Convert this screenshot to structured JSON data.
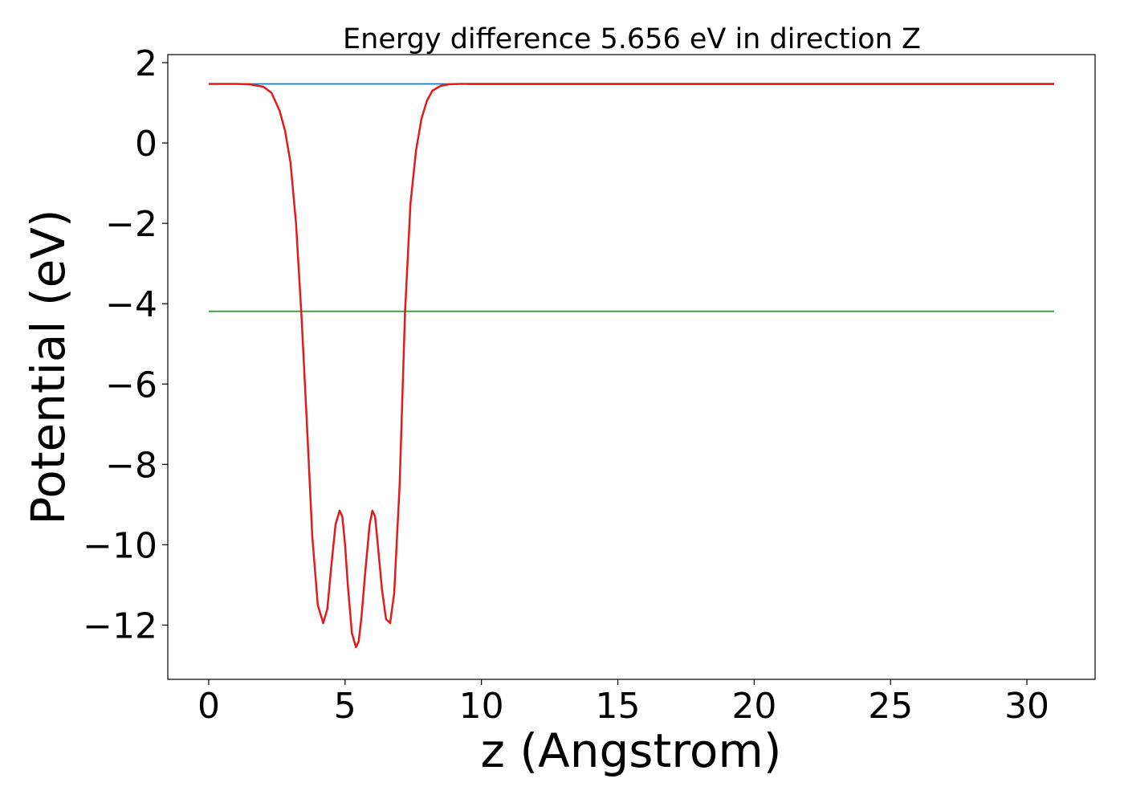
{
  "chart_data": {
    "type": "line",
    "title": "Energy difference 5.656 eV in direction Z",
    "xlabel": "z (Angstrom)",
    "ylabel": "Potential (eV)",
    "xlim": [
      -1.5,
      32.5
    ],
    "ylim": [
      -13.35,
      2.2
    ],
    "xticks": [
      0,
      5,
      10,
      15,
      20,
      25,
      30
    ],
    "xtick_labels": [
      "0",
      "5",
      "10",
      "15",
      "20",
      "25",
      "30"
    ],
    "yticks": [
      2,
      0,
      -2,
      -4,
      -6,
      -8,
      -10,
      -12
    ],
    "ytick_labels": [
      "2",
      "0",
      "−2",
      "−4",
      "−6",
      "−8",
      "−10",
      "−12"
    ],
    "grid": false,
    "legend": "none",
    "series": [
      {
        "color": "#1f77b4",
        "x": [
          0,
          31
        ],
        "y": [
          1.47,
          1.47
        ]
      },
      {
        "color": "#2ca02c",
        "x": [
          0,
          31
        ],
        "y": [
          -4.19,
          -4.19
        ]
      },
      {
        "color": "#7b68a8",
        "x": [
          9.5,
          31
        ],
        "y": [
          1.46,
          1.46
        ]
      },
      {
        "color": "#e31a1c",
        "x": [
          0,
          1.0,
          1.5,
          2.0,
          2.3,
          2.6,
          2.8,
          3.0,
          3.2,
          3.4,
          3.6,
          3.8,
          4.0,
          4.2,
          4.35,
          4.5,
          4.65,
          4.8,
          4.9,
          5.0,
          5.1,
          5.25,
          5.4,
          5.5,
          5.6,
          5.75,
          5.9,
          6.0,
          6.1,
          6.2,
          6.35,
          6.5,
          6.65,
          6.8,
          7.0,
          7.2,
          7.4,
          7.6,
          7.8,
          8.0,
          8.2,
          8.5,
          8.8,
          9.2,
          10.0,
          12.0,
          31.0
        ],
        "y": [
          1.47,
          1.47,
          1.46,
          1.4,
          1.25,
          0.8,
          0.3,
          -0.5,
          -2.0,
          -4.3,
          -7.0,
          -9.8,
          -11.5,
          -11.95,
          -11.6,
          -10.5,
          -9.5,
          -9.15,
          -9.3,
          -10.0,
          -11.0,
          -12.2,
          -12.55,
          -12.4,
          -11.8,
          -10.6,
          -9.5,
          -9.15,
          -9.3,
          -10.0,
          -11.1,
          -11.85,
          -11.95,
          -11.2,
          -8.5,
          -4.2,
          -1.5,
          -0.2,
          0.6,
          1.05,
          1.3,
          1.42,
          1.46,
          1.47,
          1.47,
          1.47,
          1.47
        ]
      }
    ]
  }
}
